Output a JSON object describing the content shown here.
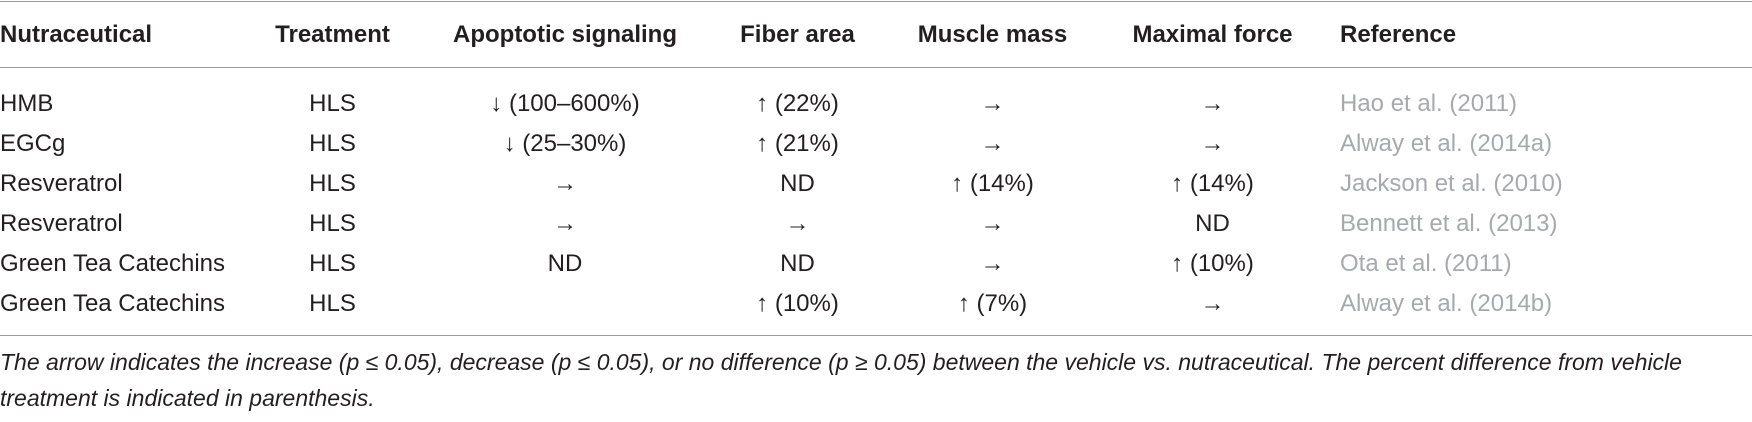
{
  "table": {
    "headers": [
      "Nutraceutical",
      "Treatment",
      "Apoptotic signaling",
      "Fiber area",
      "Muscle mass",
      "Maximal force",
      "Reference"
    ],
    "rows": [
      [
        "HMB",
        "HLS",
        "↓ (100–600%)",
        "↑ (22%)",
        "→",
        "→",
        "Hao et al. (2011)"
      ],
      [
        "EGCg",
        "HLS",
        "↓ (25–30%)",
        "↑ (21%)",
        "→",
        "→",
        "Alway et al. (2014a)"
      ],
      [
        "Resveratrol",
        "HLS",
        "→",
        "ND",
        "↑ (14%)",
        "↑ (14%)",
        "Jackson et al. (2010)"
      ],
      [
        "Resveratrol",
        "HLS",
        "→",
        "→",
        "→",
        "ND",
        "Bennett et al. (2013)"
      ],
      [
        "Green Tea Catechins",
        "HLS",
        "ND",
        "ND",
        "→",
        "↑ (10%)",
        "Ota et al. (2011)"
      ],
      [
        "Green Tea Catechins",
        "HLS",
        "",
        "↑ (10%)",
        "↑ (7%)",
        "→",
        "Alway et al. (2014b)"
      ]
    ]
  },
  "footnote": "The arrow indicates the increase (p ≤ 0.05), decrease (p ≤ 0.05), or no difference (p ≥ 0.05) between the vehicle vs. nutraceutical. The percent difference from vehicle treatment is indicated in parenthesis.",
  "colors": {
    "text": "#231f20",
    "reference_link": "#a7a9ac",
    "rule": "#9b9b9b"
  }
}
